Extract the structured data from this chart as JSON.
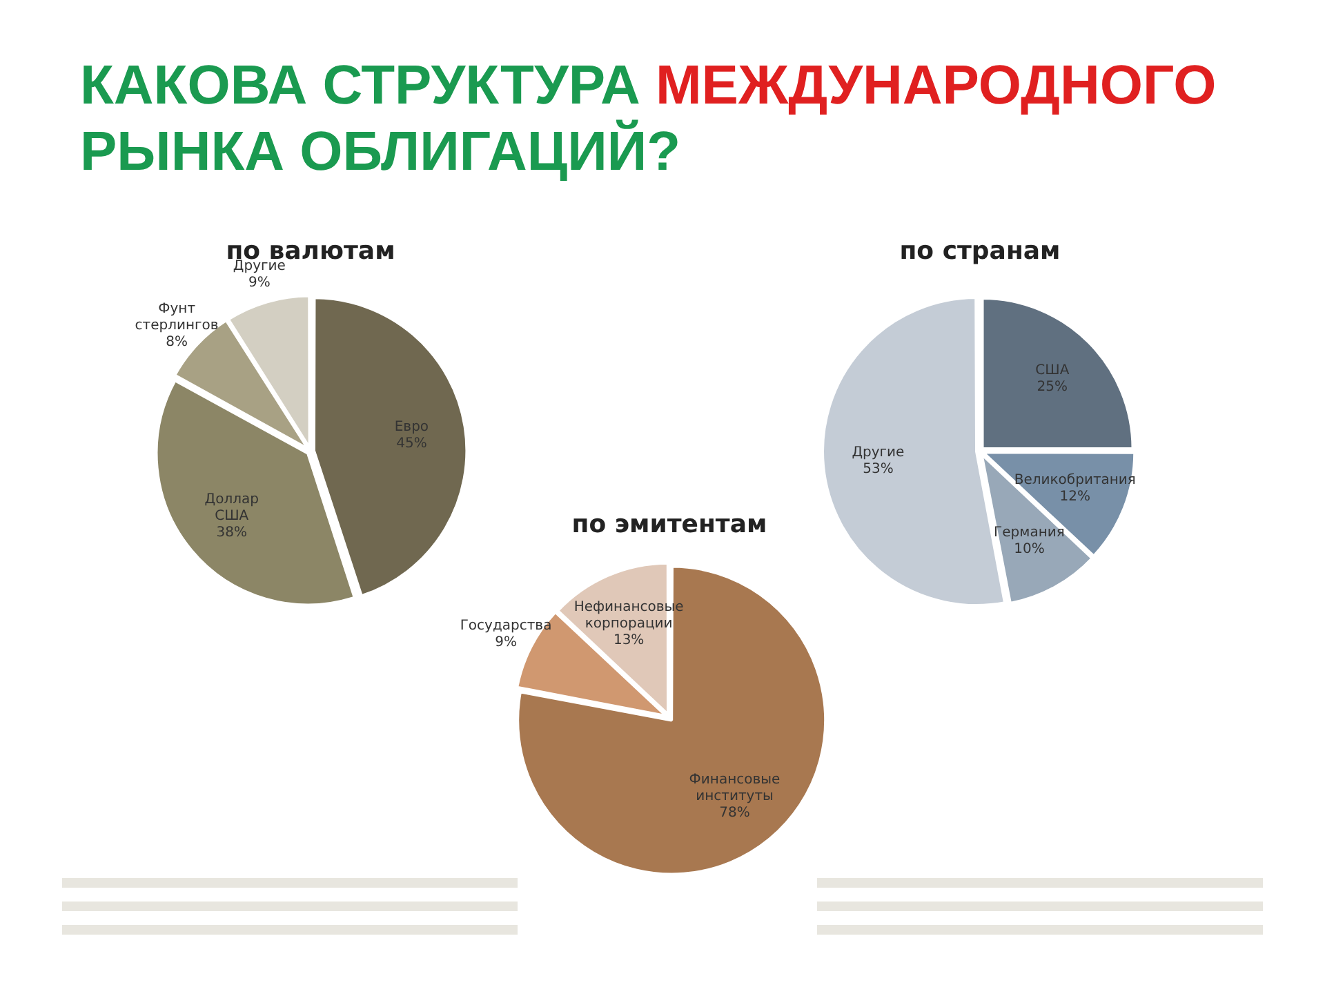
{
  "chart_data": [
    {
      "type": "pie",
      "title": "КАКОВА СТРУКТУРА МЕЖДУНАРОДНОГО РЫНКА ОБЛИГАЦИЙ?",
      "subtitle": "по валютам",
      "categories": [
        "Евро",
        "Доллар США",
        "Фунт стерлингов",
        "Другие"
      ],
      "values": [
        45,
        38,
        8,
        9
      ],
      "value_labels": [
        "45%",
        "38%",
        "8%",
        "9%"
      ],
      "colors": [
        "#706850",
        "#8c8666",
        "#a8a184",
        "#d3cfc2"
      ]
    },
    {
      "type": "pie",
      "subtitle": "по странам",
      "categories": [
        "США",
        "Великобритания",
        "Германия",
        "Другие"
      ],
      "values": [
        25,
        12,
        10,
        53
      ],
      "value_labels": [
        "25%",
        "12%",
        "10%",
        "53%"
      ],
      "colors": [
        "#607080",
        "#7890a8",
        "#98a8b8",
        "#c4ccd6"
      ]
    },
    {
      "type": "pie",
      "subtitle": "по эмитентам",
      "categories": [
        "Финансовые институты",
        "Государства",
        "Нефинансовые корпорации"
      ],
      "values": [
        78,
        9,
        13
      ],
      "value_labels": [
        "78%",
        "9%",
        "13%"
      ],
      "colors": [
        "#a87850",
        "#d09870",
        "#e0c8b8"
      ]
    }
  ]
}
